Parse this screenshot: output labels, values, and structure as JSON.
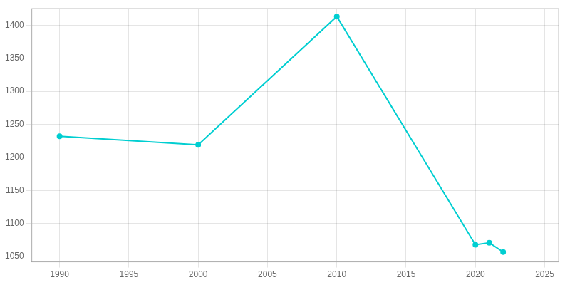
{
  "chart_data": {
    "type": "line",
    "x": [
      1990,
      2000,
      2010,
      2020,
      2021,
      2022
    ],
    "values": [
      1232,
      1219,
      1413,
      1068,
      1071,
      1057
    ],
    "color": "#00CED1",
    "marker": "circle",
    "xlim": [
      1988,
      2026
    ],
    "ylim": [
      1042,
      1425
    ],
    "xticks": [
      1990,
      1995,
      2000,
      2005,
      2010,
      2015,
      2020,
      2025
    ],
    "yticks": [
      1050,
      1100,
      1150,
      1200,
      1250,
      1300,
      1350,
      1400
    ],
    "grid": true
  }
}
